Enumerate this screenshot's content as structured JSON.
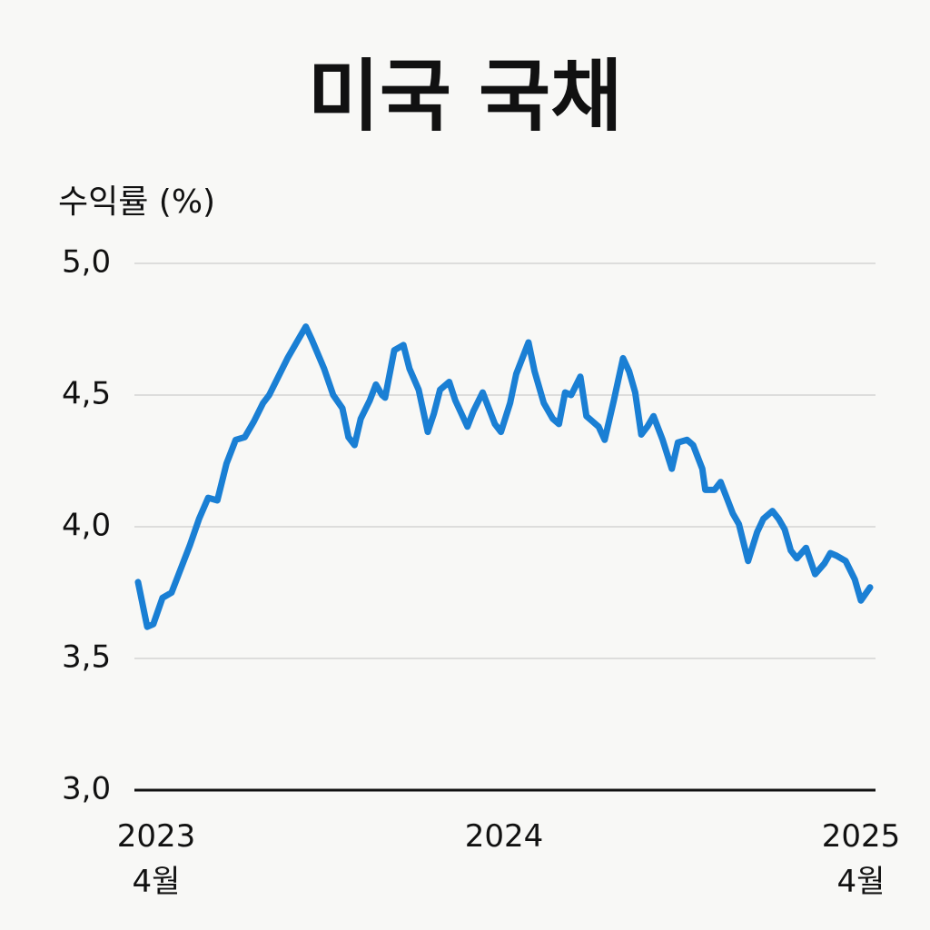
{
  "chart_data": {
    "type": "line",
    "title": "미국 국채",
    "y_label": "수익률 (%)",
    "xlim": [
      0,
      24
    ],
    "xticks": [
      {
        "value": 0,
        "label": "2023\n4월"
      },
      {
        "value": 12,
        "label": "2024"
      },
      {
        "value": 24,
        "label": "2025\n4월"
      }
    ],
    "ylim": [
      3.0,
      5.0
    ],
    "yticks": [
      {
        "value": 3.0,
        "label": "3,0"
      },
      {
        "value": 3.5,
        "label": "3,5"
      },
      {
        "value": 4.0,
        "label": "4,0"
      },
      {
        "value": 4.5,
        "label": "4,5"
      },
      {
        "value": 5.0,
        "label": "5,0"
      }
    ],
    "grid": true,
    "x": [
      0.0,
      0.3,
      0.5,
      0.8,
      1.1,
      1.4,
      1.7,
      2.0,
      2.3,
      2.6,
      2.9,
      3.2,
      3.5,
      3.8,
      4.1,
      4.3,
      4.6,
      4.9,
      5.2,
      5.5,
      5.7,
      6.1,
      6.4,
      6.7,
      6.9,
      7.1,
      7.3,
      7.6,
      7.8,
      8.0,
      8.1,
      8.4,
      8.7,
      8.9,
      9.2,
      9.5,
      9.7,
      9.9,
      10.2,
      10.4,
      10.8,
      11.0,
      11.3,
      11.5,
      11.7,
      11.9,
      12.2,
      12.4,
      12.8,
      13.0,
      13.3,
      13.6,
      13.8,
      14.0,
      14.2,
      14.5,
      14.7,
      14.9,
      15.1,
      15.3,
      15.6,
      15.9,
      16.1,
      16.3,
      16.5,
      16.7,
      16.9,
      17.2,
      17.5,
      17.7,
      18.0,
      18.2,
      18.5,
      18.6,
      18.9,
      19.1,
      19.3,
      19.5,
      19.7,
      20.0,
      20.3,
      20.5,
      20.8,
      21.0,
      21.2,
      21.4,
      21.6,
      21.9,
      22.2,
      22.5,
      22.7,
      22.9,
      23.2,
      23.5,
      23.7,
      24.0
    ],
    "series": [
      {
        "name": "미국 국채",
        "color": "#1a7fd4",
        "values": [
          3.79,
          3.62,
          3.63,
          3.73,
          3.75,
          3.84,
          3.93,
          4.03,
          4.11,
          4.1,
          4.24,
          4.33,
          4.34,
          4.4,
          4.47,
          4.5,
          4.57,
          4.64,
          4.7,
          4.76,
          4.71,
          4.6,
          4.5,
          4.45,
          4.34,
          4.31,
          4.41,
          4.48,
          4.54,
          4.5,
          4.49,
          4.67,
          4.69,
          4.6,
          4.52,
          4.36,
          4.43,
          4.52,
          4.55,
          4.48,
          4.38,
          4.44,
          4.51,
          4.45,
          4.39,
          4.36,
          4.47,
          4.58,
          4.7,
          4.59,
          4.47,
          4.41,
          4.39,
          4.51,
          4.5,
          4.57,
          4.42,
          4.4,
          4.38,
          4.33,
          4.48,
          4.64,
          4.59,
          4.51,
          4.35,
          4.38,
          4.42,
          4.33,
          4.22,
          4.32,
          4.33,
          4.31,
          4.22,
          4.14,
          4.14,
          4.17,
          4.11,
          4.05,
          4.01,
          3.87,
          3.98,
          4.03,
          4.06,
          4.03,
          3.99,
          3.91,
          3.88,
          3.92,
          3.82,
          3.86,
          3.9,
          3.89,
          3.87,
          3.8,
          3.72,
          3.77
        ]
      }
    ]
  }
}
